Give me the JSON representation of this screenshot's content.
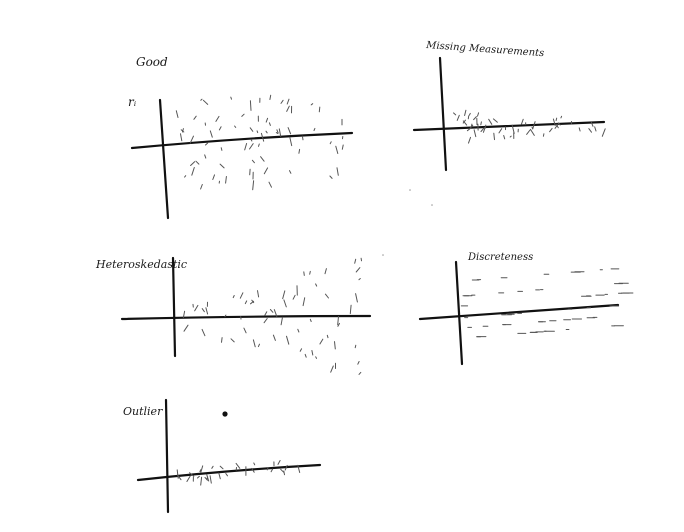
{
  "panels": [
    {
      "id": "good",
      "title": "Good",
      "y_label": "rᵢ"
    },
    {
      "id": "missing",
      "title": "Missing Measurements"
    },
    {
      "id": "hetero",
      "title": "Heteroskedastic"
    },
    {
      "id": "discrete",
      "title": "Discreteness"
    },
    {
      "id": "outlier",
      "title": "Outlier"
    }
  ],
  "ink_color": "#1a1a1a",
  "mark_color": "#555555"
}
